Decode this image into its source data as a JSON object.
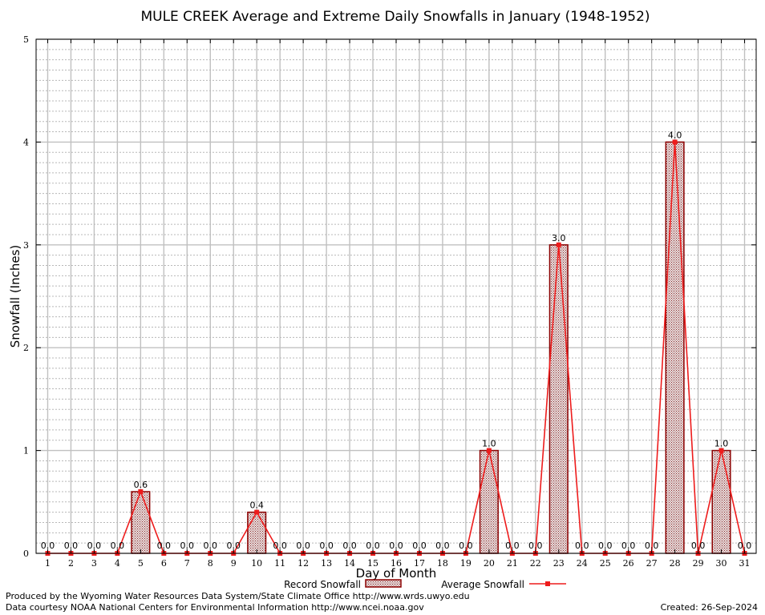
{
  "chart_data": {
    "type": "bar",
    "title": "MULE CREEK Average and Extreme Daily Snowfalls in January (1948-1952)",
    "xlabel": "Day of Month",
    "ylabel": "Snowfall (Inches)",
    "ylim": [
      0,
      5
    ],
    "yticks": [
      "0",
      "1",
      "2",
      "3",
      "4",
      "5"
    ],
    "categories": [
      "1",
      "2",
      "3",
      "4",
      "5",
      "6",
      "7",
      "8",
      "9",
      "10",
      "11",
      "12",
      "13",
      "14",
      "15",
      "16",
      "17",
      "18",
      "19",
      "20",
      "21",
      "22",
      "23",
      "24",
      "25",
      "26",
      "27",
      "28",
      "29",
      "30",
      "31"
    ],
    "series": [
      {
        "name": "Record Snowfall",
        "type": "bar",
        "values": [
          0,
          0,
          0,
          0,
          0.6,
          0,
          0,
          0,
          0,
          0.4,
          0,
          0,
          0,
          0,
          0,
          0,
          0,
          0,
          0,
          1.0,
          0,
          0,
          3.0,
          0,
          0,
          0,
          0,
          4.0,
          0,
          1.0,
          0
        ]
      },
      {
        "name": "Average Snowfall",
        "type": "line",
        "values": [
          0,
          0,
          0,
          0,
          0.6,
          0,
          0,
          0,
          0,
          0.4,
          0,
          0,
          0,
          0,
          0,
          0,
          0,
          0,
          0,
          1.0,
          0,
          0,
          3.0,
          0,
          0,
          0,
          0,
          4.0,
          0,
          1.0,
          0
        ]
      }
    ],
    "data_labels": [
      "0.0",
      "0.0",
      "0.0",
      "0.0",
      "0.6",
      "0.0",
      "0.0",
      "0.0",
      "0.0",
      "0.4",
      "0.0",
      "0.0",
      "0.0",
      "0.0",
      "0.0",
      "0.0",
      "0.0",
      "0.0",
      "0.0",
      "1.0",
      "0.0",
      "0.0",
      "3.0",
      "0.0",
      "0.0",
      "0.0",
      "0.0",
      "4.0",
      "0.0",
      "1.0",
      "0.0"
    ],
    "grid": true,
    "legend_position": "bottom-center"
  },
  "colors": {
    "bar_fill": "#c8b8b8",
    "bar_stroke": "#8b0000",
    "line": "#ee1c1c",
    "grid": "#c0c0c0"
  },
  "footer": {
    "line1": "Produced by the Wyoming Water Resources Data System/State Climate Office http://www.wrds.uwyo.edu",
    "line2": "Data courtesy NOAA National Centers for Environmental Information http://www.ncei.noaa.gov",
    "created": "Created:  26-Sep-2024"
  }
}
